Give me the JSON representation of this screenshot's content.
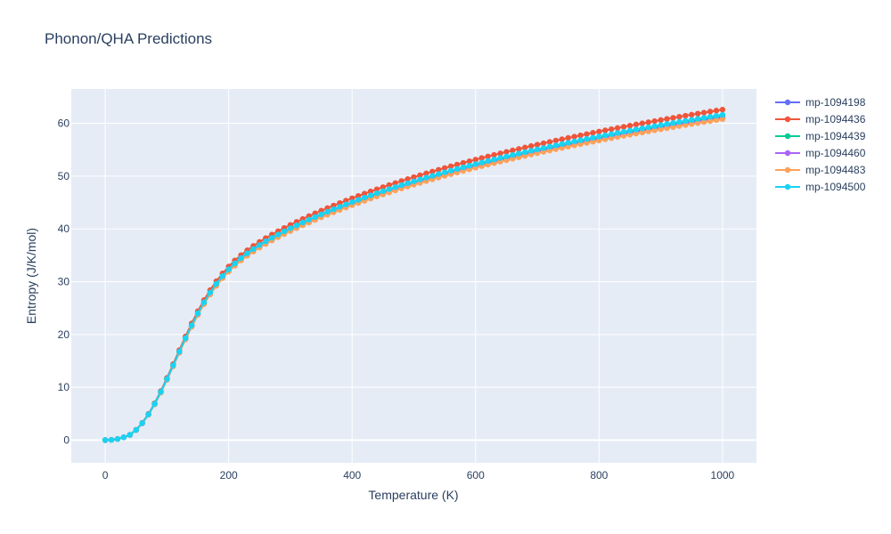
{
  "chart_data": {
    "type": "line",
    "title": "Phonon/QHA Predictions",
    "xlabel": "Temperature (K)",
    "ylabel": "Entropy (J/K/mol)",
    "xlim": [
      -55,
      1055
    ],
    "ylim": [
      -4.3,
      66.5
    ],
    "xticks": [
      0,
      200,
      400,
      600,
      800,
      1000
    ],
    "yticks": [
      0,
      10,
      20,
      30,
      40,
      50,
      60
    ],
    "grid": true,
    "legend": "top-right",
    "x_start": 0,
    "x_step": 10,
    "x_count": 101,
    "series": [
      {
        "name": "mp-1094198",
        "color": "#636efa",
        "y1000": 61.3
      },
      {
        "name": "mp-1094436",
        "color": "#ef553b",
        "y1000": 62.6
      },
      {
        "name": "mp-1094439",
        "color": "#00cc96",
        "y1000": 61.5
      },
      {
        "name": "mp-1094460",
        "color": "#ab63fa",
        "y1000": 61.0
      },
      {
        "name": "mp-1094483",
        "color": "#ffa15a",
        "y1000": 60.8
      },
      {
        "name": "mp-1094500",
        "color": "#19d3f3",
        "y1000": 61.6
      }
    ]
  }
}
